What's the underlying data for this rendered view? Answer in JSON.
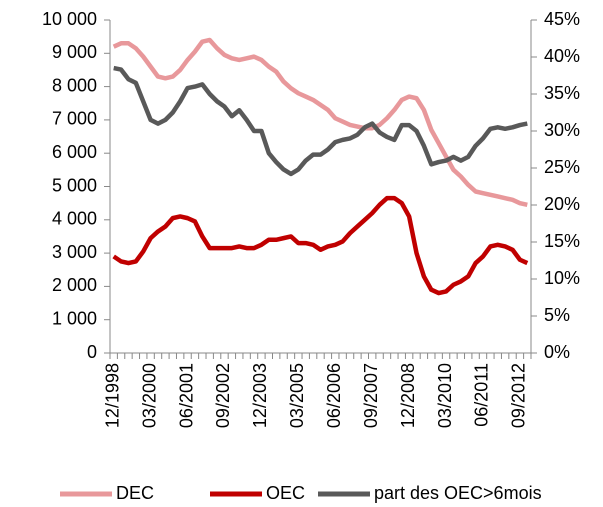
{
  "chart_data": {
    "type": "line",
    "categories": [
      "12/1998",
      null,
      null,
      null,
      null,
      "03/2000",
      null,
      null,
      null,
      null,
      "06/2001",
      null,
      null,
      null,
      null,
      "09/2002",
      null,
      null,
      null,
      null,
      "12/2003",
      null,
      null,
      null,
      null,
      "03/2005",
      null,
      null,
      null,
      null,
      "06/2006",
      null,
      null,
      null,
      null,
      "09/2007",
      null,
      null,
      null,
      null,
      "12/2008",
      null,
      null,
      null,
      null,
      "03/2010",
      null,
      null,
      null,
      null,
      "06/2011",
      null,
      null,
      null,
      null,
      "09/2012",
      null
    ],
    "series": [
      {
        "name": "DEC",
        "color": "#e8989b",
        "values": [
          9200,
          9300,
          9300,
          9150,
          8900,
          8600,
          8300,
          8250,
          8300,
          8500,
          8800,
          9050,
          9350,
          9400,
          9150,
          8950,
          8850,
          8800,
          8850,
          8900,
          8800,
          8600,
          8450,
          8150,
          7950,
          7800,
          7700,
          7600,
          7450,
          7300,
          7050,
          6950,
          6850,
          6800,
          6750,
          6750,
          6850,
          7050,
          7300,
          7600,
          7700,
          7650,
          7300,
          6700,
          6300,
          5900,
          5500,
          5300,
          5050,
          4850,
          4800,
          4750,
          4700,
          4650,
          4600,
          4500,
          4450
        ]
      },
      {
        "name": "OEC",
        "color": "#c00000",
        "values": [
          2900,
          2750,
          2700,
          2750,
          3050,
          3450,
          3650,
          3800,
          4050,
          4100,
          4050,
          3950,
          3500,
          3150,
          3150,
          3150,
          3150,
          3200,
          3150,
          3150,
          3250,
          3400,
          3400,
          3450,
          3500,
          3300,
          3300,
          3250,
          3100,
          3200,
          3250,
          3350,
          3600,
          3800,
          4000,
          4200,
          4450,
          4650,
          4650,
          4500,
          4100,
          3000,
          2300,
          1900,
          1800,
          1850,
          2050,
          2150,
          2300,
          2700,
          2900,
          3200,
          3250,
          3200,
          3100,
          2800,
          2700
        ]
      },
      {
        "name": "part des OEC>6mois",
        "color": "#595959",
        "axis": "y2",
        "values": [
          38.5,
          38.3,
          37,
          36.5,
          34,
          31.5,
          31,
          31.5,
          32.5,
          34,
          35.8,
          36,
          36.3,
          35,
          34,
          33.3,
          32,
          32.8,
          31.5,
          30,
          30,
          27,
          25.8,
          24.8,
          24.2,
          24.8,
          26,
          26.8,
          26.8,
          27.5,
          28.5,
          28.8,
          29,
          29.5,
          30.5,
          31,
          29.8,
          29.2,
          28.8,
          30.8,
          30.8,
          30,
          28,
          25.5,
          25.8,
          26,
          26.5,
          26,
          26.5,
          28,
          29,
          30.3,
          30.5,
          30.3,
          30.5,
          30.8,
          31
        ]
      }
    ],
    "ylim": [
      0,
      10000
    ],
    "yticks": [
      0,
      {
        "value": 1000,
        "label": "1 000"
      },
      {
        "value": 2000,
        "label": "2 000"
      },
      {
        "value": 3000,
        "label": "3 000"
      },
      {
        "value": 4000,
        "label": "4 000"
      },
      {
        "value": 5000,
        "label": "5 000"
      },
      {
        "value": 6000,
        "label": "6 000"
      },
      {
        "value": 7000,
        "label": "7 000"
      },
      {
        "value": 8000,
        "label": "8 000"
      },
      {
        "value": 9000,
        "label": "9 000"
      },
      {
        "value": 10000,
        "label": "10 000"
      }
    ],
    "y2lim": [
      0,
      45
    ],
    "y2ticks": [
      {
        "value": 0,
        "label": "0%"
      },
      {
        "value": 5,
        "label": "5%"
      },
      {
        "value": 10,
        "label": "10%"
      },
      {
        "value": 15,
        "label": "15%"
      },
      {
        "value": 20,
        "label": "20%"
      },
      {
        "value": 25,
        "label": "25%"
      },
      {
        "value": 30,
        "label": "30%"
      },
      {
        "value": 35,
        "label": "35%"
      },
      {
        "value": 40,
        "label": "40%"
      },
      {
        "value": 45,
        "label": "45%"
      }
    ],
    "legend": "bottom"
  }
}
